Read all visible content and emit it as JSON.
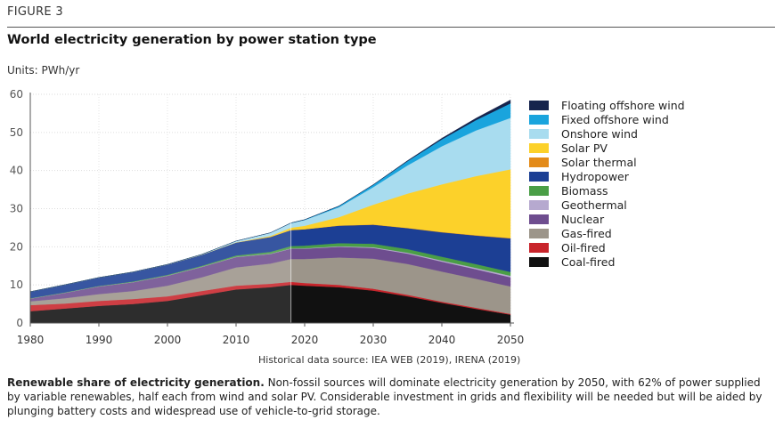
{
  "figure_label": "FIGURE 3",
  "title": "World electricity generation by power station type",
  "units": "Units: PWh/yr",
  "source": "Historical data source: IEA WEB (2019), IRENA (2019)",
  "caption": {
    "bold": "Renewable share of electricity generation.",
    "text": " Non-fossil sources will dominate electricity generation by 2050, with 62% of power supplied by variable renewables, half each from wind and solar PV. Considerable investment in grids and flexibility will be needed but will be aided by plunging battery costs and widespread use of vehicle-to-grid storage."
  },
  "chart_data": {
    "type": "area",
    "stacked": true,
    "x": [
      1980,
      1985,
      1990,
      1995,
      2000,
      2005,
      2010,
      2015,
      2018,
      2020,
      2025,
      2030,
      2035,
      2040,
      2045,
      2050
    ],
    "xticks": [
      1980,
      1990,
      2000,
      2010,
      2020,
      2030,
      2040,
      2050
    ],
    "yticks": [
      0,
      10,
      20,
      30,
      40,
      50,
      60
    ],
    "ylim": [
      0,
      60
    ],
    "xlim": [
      1980,
      2050
    ],
    "historical_end": 2018,
    "series": [
      {
        "name": "Coal-fired",
        "color": "#111111",
        "values": [
          3.1,
          3.8,
          4.5,
          5.0,
          5.8,
          7.3,
          8.8,
          9.4,
          10.0,
          9.8,
          9.4,
          8.5,
          7.0,
          5.3,
          3.7,
          2.2
        ]
      },
      {
        "name": "Oil-fired",
        "color": "#c8242b",
        "values": [
          1.6,
          1.3,
          1.3,
          1.3,
          1.2,
          1.1,
          1.0,
          0.9,
          0.8,
          0.7,
          0.6,
          0.5,
          0.4,
          0.3,
          0.3,
          0.2
        ]
      },
      {
        "name": "Gas-fired",
        "color": "#9c958a",
        "values": [
          1.0,
          1.4,
          1.8,
          2.1,
          2.8,
          3.6,
          4.8,
          5.3,
          6.0,
          6.3,
          7.2,
          7.9,
          8.1,
          7.9,
          7.6,
          7.2
        ]
      },
      {
        "name": "Nuclear",
        "color": "#6e4d8f",
        "values": [
          0.7,
          1.4,
          2.0,
          2.3,
          2.6,
          2.7,
          2.7,
          2.5,
          2.7,
          2.7,
          2.8,
          2.8,
          2.7,
          2.6,
          2.5,
          2.4
        ]
      },
      {
        "name": "Geothermal",
        "color": "#b6a9cf",
        "values": [
          0.02,
          0.03,
          0.04,
          0.05,
          0.05,
          0.06,
          0.07,
          0.08,
          0.09,
          0.1,
          0.15,
          0.2,
          0.25,
          0.3,
          0.35,
          0.4
        ]
      },
      {
        "name": "Biomass",
        "color": "#4a9e46",
        "values": [
          0.1,
          0.1,
          0.1,
          0.15,
          0.2,
          0.25,
          0.35,
          0.5,
          0.6,
          0.7,
          0.8,
          0.9,
          0.95,
          1.0,
          1.0,
          1.0
        ]
      },
      {
        "name": "Hydropower",
        "color": "#1c3f94",
        "values": [
          1.7,
          2.0,
          2.2,
          2.5,
          2.7,
          2.9,
          3.4,
          3.9,
          4.2,
          4.3,
          4.6,
          5.0,
          5.5,
          6.4,
          7.5,
          8.8
        ]
      },
      {
        "name": "Solar thermal",
        "color": "#e38b1a",
        "values": [
          0,
          0,
          0,
          0,
          0,
          0,
          0.002,
          0.01,
          0.01,
          0.02,
          0.03,
          0.05,
          0.06,
          0.08,
          0.1,
          0.12
        ]
      },
      {
        "name": "Solar PV",
        "color": "#fcd12a",
        "values": [
          0,
          0,
          0,
          0,
          0,
          0,
          0.03,
          0.25,
          0.6,
          0.9,
          2.2,
          5.2,
          9.0,
          12.5,
          15.5,
          18.0
        ]
      },
      {
        "name": "Onshore wind",
        "color": "#a8dcef",
        "values": [
          0,
          0,
          0,
          0,
          0.03,
          0.1,
          0.35,
          0.8,
          1.2,
          1.5,
          2.6,
          4.6,
          7.4,
          10.0,
          12.0,
          13.5
        ]
      },
      {
        "name": "Fixed offshore wind",
        "color": "#1aa4dd",
        "values": [
          0,
          0,
          0,
          0,
          0,
          0,
          0.01,
          0.03,
          0.06,
          0.1,
          0.3,
          0.6,
          1.1,
          1.8,
          2.7,
          3.8
        ]
      },
      {
        "name": "Floating offshore wind",
        "color": "#16244d",
        "values": [
          0,
          0,
          0,
          0,
          0,
          0,
          0,
          0,
          0,
          0,
          0.02,
          0.06,
          0.15,
          0.3,
          0.5,
          0.9
        ]
      }
    ],
    "legend_order": [
      "Floating offshore wind",
      "Fixed offshore wind",
      "Onshore wind",
      "Solar PV",
      "Solar thermal",
      "Hydropower",
      "Biomass",
      "Geothermal",
      "Nuclear",
      "Gas-fired",
      "Oil-fired",
      "Coal-fired"
    ],
    "title": "World electricity generation by power station type",
    "xlabel": "",
    "ylabel": "Units: PWh/yr",
    "legend_position": "right"
  }
}
